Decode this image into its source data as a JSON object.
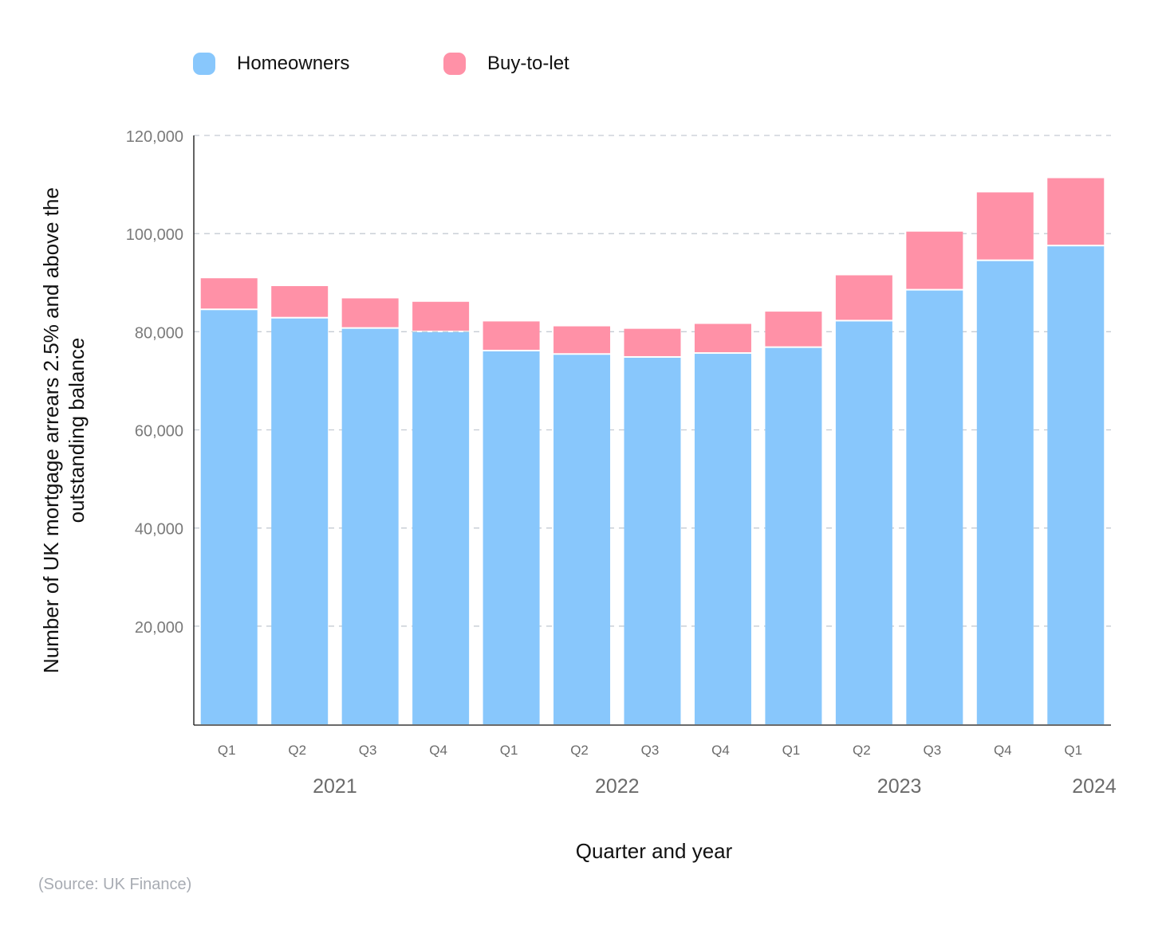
{
  "chart_data": {
    "type": "bar",
    "stacked": true,
    "categories": [
      "Q1",
      "Q2",
      "Q3",
      "Q4",
      "Q1",
      "Q2",
      "Q3",
      "Q4",
      "Q1",
      "Q2",
      "Q3",
      "Q4",
      "Q1"
    ],
    "years": [
      {
        "label": "2021",
        "quarters": 4
      },
      {
        "label": "2022",
        "quarters": 4
      },
      {
        "label": "2023",
        "quarters": 4
      },
      {
        "label": "2024",
        "quarters": 1
      }
    ],
    "series": [
      {
        "name": "Homeowners",
        "color": "#88c7fc",
        "values": [
          84400,
          82700,
          80600,
          79900,
          76000,
          75300,
          74700,
          75500,
          76700,
          82100,
          88400,
          94400,
          97400
        ]
      },
      {
        "name": "Buy-to-let",
        "color": "#ff91a7",
        "values": [
          6500,
          6600,
          6200,
          6200,
          6100,
          5800,
          5900,
          6100,
          7400,
          9400,
          12000,
          14000,
          13900
        ]
      }
    ],
    "xlabel": "Quarter and year",
    "ylabel": "Number of UK mortgage arrears 2.5% and above the outstanding balance",
    "ylim": [
      0,
      120000
    ],
    "yticks": [
      "20,000",
      "40,000",
      "60,000",
      "80,000",
      "100,000",
      "120,000"
    ],
    "ytick_values": [
      20000,
      40000,
      60000,
      80000,
      100000,
      120000
    ],
    "grid": true,
    "legend_position": "top-left"
  },
  "source": "(Source: UK Finance)"
}
